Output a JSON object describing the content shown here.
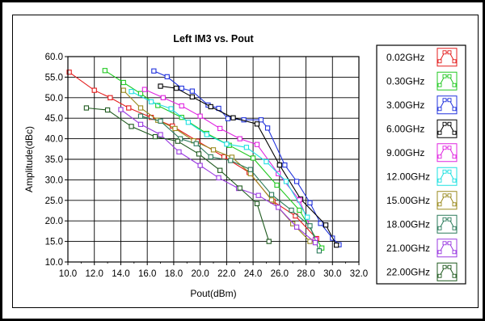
{
  "chart_data": {
    "type": "line",
    "title": "Left IM3 vs. Pout",
    "xlabel": "Pout(dBm)",
    "ylabel": "Amplitude(dBc)",
    "xlim": [
      10.0,
      32.0
    ],
    "ylim": [
      10.0,
      60.0
    ],
    "xticks": [
      "10.0",
      "12.0",
      "14.0",
      "16.0",
      "18.0",
      "20.0",
      "22.0",
      "24.0",
      "26.0",
      "28.0",
      "30.0",
      "32.0"
    ],
    "yticks": [
      "10.0",
      "15.0",
      "20.0",
      "25.0",
      "30.0",
      "35.0",
      "40.0",
      "45.0",
      "50.0",
      "55.0",
      "60.0"
    ],
    "grid": true,
    "legend_position": "right",
    "series": [
      {
        "name": "0.02GHz",
        "color": "#e41e1e",
        "x": [
          10.1,
          12.0,
          13.2,
          14.6,
          16.3,
          17.9,
          19.8,
          21.8,
          23.7,
          25.5,
          27.2,
          28.8
        ],
        "y": [
          56.2,
          51.8,
          50.0,
          47.5,
          45.2,
          43.1,
          39.4,
          35.6,
          31.8,
          24.8,
          21.2,
          15.7
        ]
      },
      {
        "name": "0.30GHz",
        "color": "#22c922",
        "x": [
          12.8,
          14.2,
          15.5,
          16.8,
          18.6,
          20.5,
          22.2,
          24.0,
          25.8,
          27.5,
          29.2
        ],
        "y": [
          56.6,
          53.7,
          51.0,
          48.1,
          45.2,
          41.3,
          38.4,
          35.3,
          28.7,
          22.6,
          13.4
        ]
      },
      {
        "name": "3.00GHz",
        "color": "#2233dd",
        "x": [
          16.5,
          17.5,
          18.6,
          19.4,
          20.6,
          21.4,
          22.1,
          23.3,
          24.6,
          25.1,
          26.4,
          27.3,
          28.3,
          29.1,
          30.0,
          30.5
        ],
        "y": [
          56.5,
          55.1,
          52.3,
          51.6,
          48.2,
          47.4,
          44.9,
          44.6,
          44.6,
          42.6,
          33.6,
          29.6,
          24.4,
          19.4,
          15.8,
          14.2
        ]
      },
      {
        "name": "6.00GHz",
        "color": "#000000",
        "x": [
          17.0,
          18.2,
          19.4,
          20.8,
          22.5,
          24.3,
          26.0,
          27.6,
          29.5,
          30.3
        ],
        "y": [
          52.8,
          52.3,
          50.2,
          47.8,
          45.1,
          43.6,
          33.6,
          25.3,
          19.0,
          14.1
        ]
      },
      {
        "name": "9.00GHz",
        "color": "#e024e0",
        "x": [
          15.8,
          17.2,
          18.6,
          20.0,
          21.5,
          23.0,
          24.3,
          25.9,
          27.5,
          28.7
        ],
        "y": [
          52.0,
          50.0,
          48.0,
          45.5,
          42.5,
          40.0,
          38.6,
          31.5,
          25.1,
          15.5
        ]
      },
      {
        "name": "12.00GHz",
        "color": "#1ee0e0",
        "x": [
          14.8,
          16.3,
          17.8,
          19.1,
          20.5,
          22.0,
          23.5,
          25.0,
          26.5,
          28.1
        ],
        "y": [
          51.5,
          49.0,
          47.3,
          44.0,
          41.0,
          38.7,
          37.9,
          34.4,
          29.6,
          20.9
        ]
      },
      {
        "name": "15.00GHz",
        "color": "#9a8a1e",
        "x": [
          14.2,
          15.5,
          16.8,
          18.1,
          19.5,
          21.0,
          22.4,
          23.8,
          25.4,
          27.0,
          28.3
        ],
        "y": [
          51.8,
          47.5,
          44.5,
          42.5,
          39.5,
          37.3,
          35.5,
          31.5,
          25.1,
          19.3,
          15.0
        ]
      },
      {
        "name": "18.00GHz",
        "color": "#2a7a5a",
        "x": [
          15.5,
          17.0,
          18.5,
          19.7,
          20.8,
          22.3,
          23.8,
          25.4,
          26.9,
          28.3,
          29.0
        ],
        "y": [
          45.5,
          44.3,
          40.0,
          38.8,
          35.6,
          34.7,
          32.5,
          26.4,
          22.6,
          18.8,
          12.7
        ]
      },
      {
        "name": "21.00GHz",
        "color": "#9a3ae0",
        "x": [
          14.0,
          15.5,
          17.0,
          18.4,
          20.0,
          21.4,
          22.9,
          24.4,
          25.9,
          27.3,
          28.7
        ],
        "y": [
          47.1,
          43.5,
          41.0,
          36.8,
          33.5,
          30.5,
          27.9,
          26.2,
          23.3,
          18.5,
          14.7
        ]
      },
      {
        "name": "22.00GHz",
        "color": "#1f5a1f",
        "x": [
          11.4,
          13.0,
          14.8,
          16.6,
          18.3,
          19.9,
          21.5,
          23.0,
          24.3,
          25.2
        ],
        "y": [
          47.5,
          47.0,
          43.0,
          40.5,
          39.4,
          36.3,
          32.3,
          28.0,
          24.2,
          15.0
        ]
      }
    ]
  }
}
